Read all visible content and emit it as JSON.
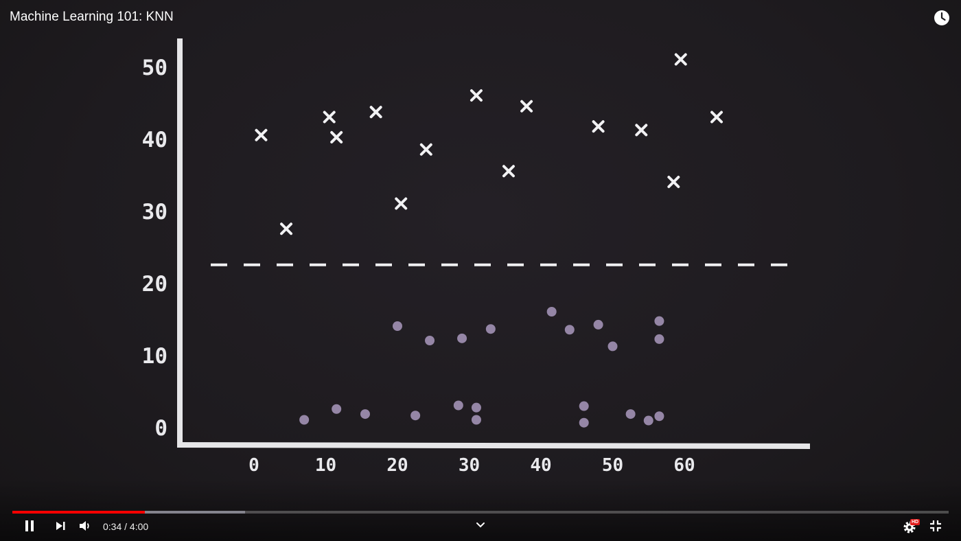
{
  "video": {
    "title": "Machine Learning 101: KNN"
  },
  "icons": {
    "watch_later": "clock-icon",
    "play_pause": "pause-icon",
    "next": "skip-next-icon",
    "volume": "volume-icon",
    "chevron": "chevron-down-icon",
    "settings": "settings-icon",
    "hd_badge": "hd-badge-icon",
    "fullscreen_exit": "exit-fullscreen-icon"
  },
  "player": {
    "current_time": "0:34",
    "separator": " / ",
    "duration": "4:00",
    "played_fraction": 0.1417,
    "buffered_fraction": 0.2485,
    "hd_label": "HD"
  },
  "colors": {
    "progress_played": "#ff0000",
    "cross_color": "#f2f2f4",
    "dot_color": "#9586a6",
    "hd_badge": "#e21b1b"
  },
  "chart_data": {
    "type": "scatter",
    "xticks": [
      "0",
      "10",
      "20",
      "30",
      "40",
      "50",
      "60"
    ],
    "yticks": [
      "0",
      "10",
      "20",
      "30",
      "40",
      "50"
    ],
    "xlim": [
      -10,
      77
    ],
    "ylim": [
      -2,
      55
    ],
    "threshold_y": 22.5,
    "series": [
      {
        "marker": "x",
        "points": [
          [
            1,
            40.5
          ],
          [
            4.5,
            27.5
          ],
          [
            10.5,
            43
          ],
          [
            11.5,
            40.2
          ],
          [
            17,
            43.7
          ],
          [
            20.5,
            31
          ],
          [
            24,
            38.5
          ],
          [
            31,
            46
          ],
          [
            35.5,
            35.5
          ],
          [
            38,
            44.5
          ],
          [
            48,
            41.7
          ],
          [
            54,
            41.2
          ],
          [
            58.5,
            34
          ],
          [
            59.5,
            51
          ],
          [
            64.5,
            43
          ]
        ]
      },
      {
        "marker": "o",
        "points": [
          [
            7,
            1
          ],
          [
            11.5,
            2.5
          ],
          [
            15.5,
            1.8
          ],
          [
            20,
            14
          ],
          [
            22.5,
            1.6
          ],
          [
            24.5,
            12
          ],
          [
            28.5,
            3
          ],
          [
            29,
            12.3
          ],
          [
            31,
            2.7
          ],
          [
            31,
            1
          ],
          [
            33,
            13.6
          ],
          [
            41.5,
            16
          ],
          [
            44,
            13.5
          ],
          [
            46,
            2.9
          ],
          [
            46,
            0.6
          ],
          [
            48,
            14.2
          ],
          [
            50,
            11.2
          ],
          [
            52.5,
            1.8
          ],
          [
            55,
            0.9
          ],
          [
            56.5,
            14.7
          ],
          [
            56.5,
            12.2
          ],
          [
            56.5,
            1.5
          ]
        ]
      }
    ]
  }
}
